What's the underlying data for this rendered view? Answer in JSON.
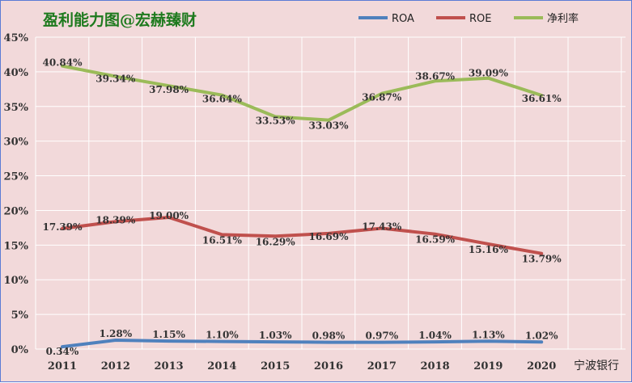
{
  "chart_data": {
    "type": "line",
    "title": "盈利能力图@宏赫臻财",
    "source_note": "宁波银行",
    "categories": [
      "2011",
      "2012",
      "2013",
      "2014",
      "2015",
      "2016",
      "2017",
      "2018",
      "2019",
      "2020"
    ],
    "y_ticks": [
      "0%",
      "5%",
      "10%",
      "15%",
      "20%",
      "25%",
      "30%",
      "35%",
      "40%",
      "45%"
    ],
    "ylim": [
      0,
      45
    ],
    "grid": true,
    "legend_position": "top-right",
    "series": [
      {
        "name": "ROA",
        "color": "#4f81bd",
        "values": [
          0.34,
          1.28,
          1.15,
          1.1,
          1.03,
          0.98,
          0.97,
          1.04,
          1.13,
          1.02
        ],
        "labels": [
          "0.34%",
          "1.28%",
          "1.15%",
          "1.10%",
          "1.03%",
          "0.98%",
          "0.97%",
          "1.04%",
          "1.13%",
          "1.02%"
        ]
      },
      {
        "name": "ROE",
        "color": "#c0504d",
        "values": [
          17.39,
          18.39,
          19.0,
          16.51,
          16.29,
          16.69,
          17.43,
          16.59,
          15.16,
          13.79
        ],
        "labels": [
          "17.39%",
          "18.39%",
          "19.00%",
          "16.51%",
          "16.29%",
          "16.69%",
          "17.43%",
          "16.59%",
          "15.16%",
          "13.79%"
        ]
      },
      {
        "name": "净利率",
        "color": "#9bbb59",
        "values": [
          40.84,
          39.34,
          37.98,
          36.64,
          33.53,
          33.03,
          36.87,
          38.67,
          39.09,
          36.61
        ],
        "labels": [
          "40.84%",
          "39.34%",
          "37.98%",
          "36.64%",
          "33.53%",
          "33.03%",
          "36.87%",
          "38.67%",
          "39.09%",
          "36.61%"
        ]
      }
    ]
  }
}
